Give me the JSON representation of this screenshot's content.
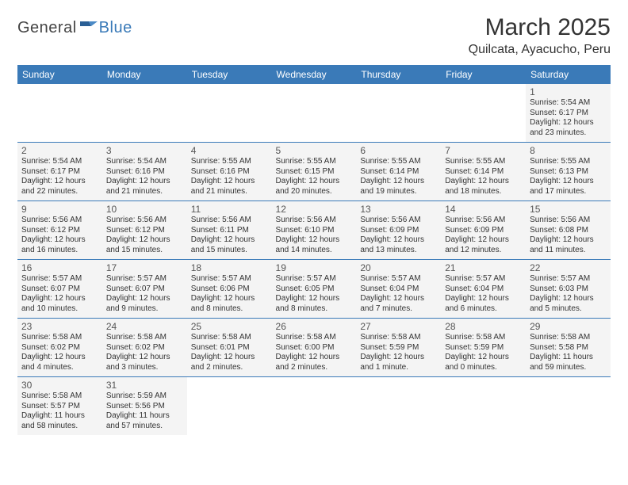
{
  "logo": {
    "text1": "General",
    "text2": "Blue"
  },
  "title": "March 2025",
  "location": "Quilcata, Ayacucho, Peru",
  "colors": {
    "header_bg": "#3a7ab8",
    "header_text": "#ffffff",
    "cell_bg": "#f4f4f4",
    "border": "#3a7ab8",
    "logo_gray": "#444444",
    "logo_blue": "#3a7ab8"
  },
  "weekdays": [
    "Sunday",
    "Monday",
    "Tuesday",
    "Wednesday",
    "Thursday",
    "Friday",
    "Saturday"
  ],
  "weeks": [
    [
      {
        "blank": true
      },
      {
        "blank": true
      },
      {
        "blank": true
      },
      {
        "blank": true
      },
      {
        "blank": true
      },
      {
        "blank": true
      },
      {
        "n": "1",
        "sr": "Sunrise: 5:54 AM",
        "ss": "Sunset: 6:17 PM",
        "dl": "Daylight: 12 hours and 23 minutes."
      }
    ],
    [
      {
        "n": "2",
        "sr": "Sunrise: 5:54 AM",
        "ss": "Sunset: 6:17 PM",
        "dl": "Daylight: 12 hours and 22 minutes."
      },
      {
        "n": "3",
        "sr": "Sunrise: 5:54 AM",
        "ss": "Sunset: 6:16 PM",
        "dl": "Daylight: 12 hours and 21 minutes."
      },
      {
        "n": "4",
        "sr": "Sunrise: 5:55 AM",
        "ss": "Sunset: 6:16 PM",
        "dl": "Daylight: 12 hours and 21 minutes."
      },
      {
        "n": "5",
        "sr": "Sunrise: 5:55 AM",
        "ss": "Sunset: 6:15 PM",
        "dl": "Daylight: 12 hours and 20 minutes."
      },
      {
        "n": "6",
        "sr": "Sunrise: 5:55 AM",
        "ss": "Sunset: 6:14 PM",
        "dl": "Daylight: 12 hours and 19 minutes."
      },
      {
        "n": "7",
        "sr": "Sunrise: 5:55 AM",
        "ss": "Sunset: 6:14 PM",
        "dl": "Daylight: 12 hours and 18 minutes."
      },
      {
        "n": "8",
        "sr": "Sunrise: 5:55 AM",
        "ss": "Sunset: 6:13 PM",
        "dl": "Daylight: 12 hours and 17 minutes."
      }
    ],
    [
      {
        "n": "9",
        "sr": "Sunrise: 5:56 AM",
        "ss": "Sunset: 6:12 PM",
        "dl": "Daylight: 12 hours and 16 minutes."
      },
      {
        "n": "10",
        "sr": "Sunrise: 5:56 AM",
        "ss": "Sunset: 6:12 PM",
        "dl": "Daylight: 12 hours and 15 minutes."
      },
      {
        "n": "11",
        "sr": "Sunrise: 5:56 AM",
        "ss": "Sunset: 6:11 PM",
        "dl": "Daylight: 12 hours and 15 minutes."
      },
      {
        "n": "12",
        "sr": "Sunrise: 5:56 AM",
        "ss": "Sunset: 6:10 PM",
        "dl": "Daylight: 12 hours and 14 minutes."
      },
      {
        "n": "13",
        "sr": "Sunrise: 5:56 AM",
        "ss": "Sunset: 6:09 PM",
        "dl": "Daylight: 12 hours and 13 minutes."
      },
      {
        "n": "14",
        "sr": "Sunrise: 5:56 AM",
        "ss": "Sunset: 6:09 PM",
        "dl": "Daylight: 12 hours and 12 minutes."
      },
      {
        "n": "15",
        "sr": "Sunrise: 5:56 AM",
        "ss": "Sunset: 6:08 PM",
        "dl": "Daylight: 12 hours and 11 minutes."
      }
    ],
    [
      {
        "n": "16",
        "sr": "Sunrise: 5:57 AM",
        "ss": "Sunset: 6:07 PM",
        "dl": "Daylight: 12 hours and 10 minutes."
      },
      {
        "n": "17",
        "sr": "Sunrise: 5:57 AM",
        "ss": "Sunset: 6:07 PM",
        "dl": "Daylight: 12 hours and 9 minutes."
      },
      {
        "n": "18",
        "sr": "Sunrise: 5:57 AM",
        "ss": "Sunset: 6:06 PM",
        "dl": "Daylight: 12 hours and 8 minutes."
      },
      {
        "n": "19",
        "sr": "Sunrise: 5:57 AM",
        "ss": "Sunset: 6:05 PM",
        "dl": "Daylight: 12 hours and 8 minutes."
      },
      {
        "n": "20",
        "sr": "Sunrise: 5:57 AM",
        "ss": "Sunset: 6:04 PM",
        "dl": "Daylight: 12 hours and 7 minutes."
      },
      {
        "n": "21",
        "sr": "Sunrise: 5:57 AM",
        "ss": "Sunset: 6:04 PM",
        "dl": "Daylight: 12 hours and 6 minutes."
      },
      {
        "n": "22",
        "sr": "Sunrise: 5:57 AM",
        "ss": "Sunset: 6:03 PM",
        "dl": "Daylight: 12 hours and 5 minutes."
      }
    ],
    [
      {
        "n": "23",
        "sr": "Sunrise: 5:58 AM",
        "ss": "Sunset: 6:02 PM",
        "dl": "Daylight: 12 hours and 4 minutes."
      },
      {
        "n": "24",
        "sr": "Sunrise: 5:58 AM",
        "ss": "Sunset: 6:02 PM",
        "dl": "Daylight: 12 hours and 3 minutes."
      },
      {
        "n": "25",
        "sr": "Sunrise: 5:58 AM",
        "ss": "Sunset: 6:01 PM",
        "dl": "Daylight: 12 hours and 2 minutes."
      },
      {
        "n": "26",
        "sr": "Sunrise: 5:58 AM",
        "ss": "Sunset: 6:00 PM",
        "dl": "Daylight: 12 hours and 2 minutes."
      },
      {
        "n": "27",
        "sr": "Sunrise: 5:58 AM",
        "ss": "Sunset: 5:59 PM",
        "dl": "Daylight: 12 hours and 1 minute."
      },
      {
        "n": "28",
        "sr": "Sunrise: 5:58 AM",
        "ss": "Sunset: 5:59 PM",
        "dl": "Daylight: 12 hours and 0 minutes."
      },
      {
        "n": "29",
        "sr": "Sunrise: 5:58 AM",
        "ss": "Sunset: 5:58 PM",
        "dl": "Daylight: 11 hours and 59 minutes."
      }
    ],
    [
      {
        "n": "30",
        "sr": "Sunrise: 5:58 AM",
        "ss": "Sunset: 5:57 PM",
        "dl": "Daylight: 11 hours and 58 minutes."
      },
      {
        "n": "31",
        "sr": "Sunrise: 5:59 AM",
        "ss": "Sunset: 5:56 PM",
        "dl": "Daylight: 11 hours and 57 minutes."
      },
      {
        "blank": true
      },
      {
        "blank": true
      },
      {
        "blank": true
      },
      {
        "blank": true
      },
      {
        "blank": true
      }
    ]
  ]
}
